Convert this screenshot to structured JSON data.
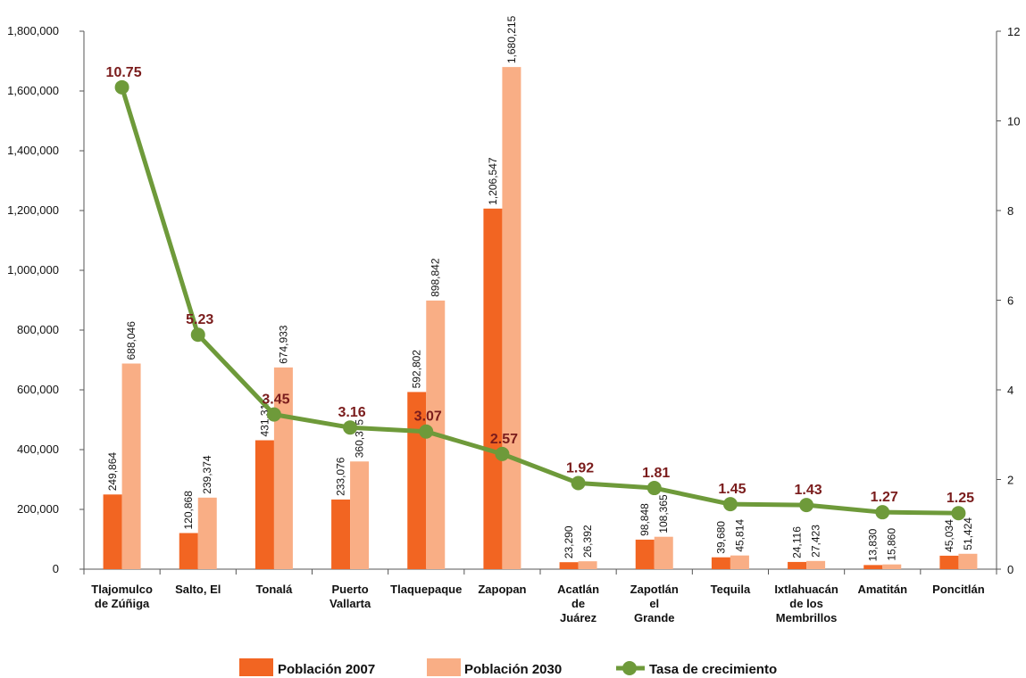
{
  "chart_data": {
    "type": "bar",
    "categories": [
      [
        "Tlajomulco",
        "de Zúñiga"
      ],
      [
        "Salto, El"
      ],
      [
        "Tonalá"
      ],
      [
        "Puerto",
        "Vallarta"
      ],
      [
        "Tlaquepaque"
      ],
      [
        "Zapopan"
      ],
      [
        "Acatlán",
        "de",
        "Juárez"
      ],
      [
        "Zapotlán",
        "el",
        "Grande"
      ],
      [
        "Tequila"
      ],
      [
        "Ixtlahuacán",
        "de los",
        "Membrillos"
      ],
      [
        "Amatitán"
      ],
      [
        "Poncitlán"
      ]
    ],
    "series": [
      {
        "name": "Población 2007",
        "type": "bar",
        "axis": "left",
        "color": "#f26522",
        "values": [
          249864,
          120868,
          431315,
          233076,
          592802,
          1206547,
          23290,
          98848,
          39680,
          24116,
          13830,
          45034
        ],
        "labels": [
          "249,864",
          "120,868",
          "431,315",
          "233,076",
          "592,802",
          "1,206,547",
          "23,290",
          "98,848",
          "39,680",
          "24,116",
          "13,830",
          "45,034"
        ]
      },
      {
        "name": "Población 2030",
        "type": "bar",
        "axis": "left",
        "color": "#f9ae85",
        "values": [
          688046,
          239374,
          674933,
          360375,
          898842,
          1680215,
          26392,
          108365,
          45814,
          27423,
          15860,
          51424
        ],
        "labels": [
          "688,046",
          "239,374",
          "674,933",
          "360,375",
          "898,842",
          "1,680,215",
          "26,392",
          "108,365",
          "45,814",
          "27,423",
          "15,860",
          "51,424"
        ]
      },
      {
        "name": "Tasa de crecimiento",
        "type": "line",
        "axis": "right",
        "color": "#6e9a3a",
        "label_color": "#7a1c1c",
        "values": [
          10.75,
          5.23,
          3.45,
          3.16,
          3.07,
          2.57,
          1.92,
          1.81,
          1.45,
          1.43,
          1.27,
          1.25
        ],
        "labels": [
          "10.75",
          "5.23",
          "3.45",
          "3.16",
          "3.07",
          "2.57",
          "1.92",
          "1.81",
          "1.45",
          "1.43",
          "1.27",
          "1.25"
        ]
      }
    ],
    "y_left": {
      "ylim": [
        0,
        1800000
      ],
      "ticks": [
        0,
        200000,
        400000,
        600000,
        800000,
        1000000,
        1200000,
        1400000,
        1600000,
        1800000
      ],
      "tick_labels": [
        "0",
        "200,000",
        "400,000",
        "600,000",
        "800,000",
        "1,000,000",
        "1,200,000",
        "1,400,000",
        "1,600,000",
        "1,800,000"
      ]
    },
    "y_right": {
      "ylim": [
        0,
        12
      ],
      "ticks": [
        0,
        2,
        4,
        6,
        8,
        10,
        12
      ],
      "tick_labels": [
        "0",
        "2",
        "4",
        "6",
        "8",
        "10",
        "12"
      ]
    },
    "grid": false,
    "legend_position": "bottom"
  }
}
